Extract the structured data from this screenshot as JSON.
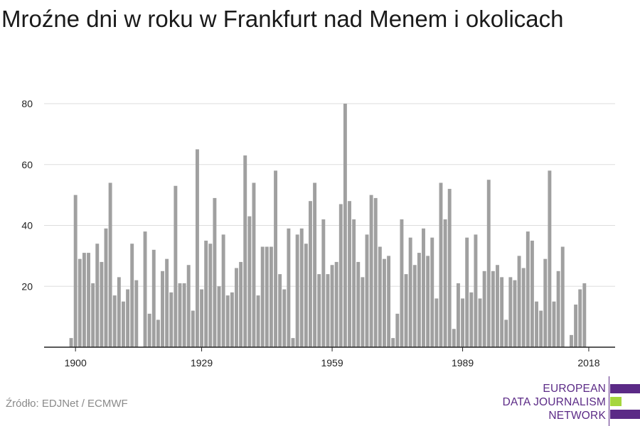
{
  "title": "Mroźne dni w roku w Frankfurt nad Menem i okolicach",
  "source": "Źródło: EDJNet / ECMWF",
  "logo": {
    "lines": [
      "EUROPEAN",
      "DATA JOURNALISM",
      "NETWORK"
    ],
    "colors": {
      "purple": "#5b2a86",
      "green": "#a5d63d"
    }
  },
  "colors": {
    "bar": "#a0a0a0",
    "grid": "#dddddd",
    "axis": "#222222"
  },
  "chart_data": {
    "type": "bar",
    "title": "Mroźne dni w roku w Frankfurt nad Menem i okolicach",
    "xlabel": "",
    "ylabel": "",
    "ylim": [
      0,
      80
    ],
    "yticks": [
      20,
      40,
      60,
      80
    ],
    "xticks": [
      1900,
      1929,
      1959,
      1989,
      2018
    ],
    "grid": true,
    "legend": "none",
    "categories": [
      1899,
      1900,
      1901,
      1902,
      1903,
      1904,
      1905,
      1906,
      1907,
      1908,
      1909,
      1910,
      1911,
      1912,
      1913,
      1914,
      1915,
      1916,
      1917,
      1918,
      1919,
      1920,
      1921,
      1922,
      1923,
      1924,
      1925,
      1926,
      1927,
      1928,
      1929,
      1930,
      1931,
      1932,
      1933,
      1934,
      1935,
      1936,
      1937,
      1938,
      1939,
      1940,
      1941,
      1942,
      1943,
      1944,
      1945,
      1946,
      1947,
      1948,
      1949,
      1950,
      1951,
      1952,
      1953,
      1954,
      1955,
      1956,
      1957,
      1958,
      1959,
      1960,
      1961,
      1962,
      1963,
      1964,
      1965,
      1966,
      1967,
      1968,
      1969,
      1970,
      1971,
      1972,
      1973,
      1974,
      1975,
      1976,
      1977,
      1978,
      1979,
      1980,
      1981,
      1982,
      1983,
      1984,
      1985,
      1986,
      1987,
      1988,
      1989,
      1990,
      1991,
      1992,
      1993,
      1994,
      1995,
      1996,
      1997,
      1998,
      1999,
      2000,
      2001,
      2002,
      2003,
      2004,
      2005,
      2006,
      2007,
      2008,
      2009,
      2010,
      2011,
      2012,
      2013,
      2014,
      2015,
      2016,
      2017,
      2018
    ],
    "values": [
      3,
      50,
      29,
      31,
      31,
      21,
      34,
      28,
      39,
      54,
      17,
      23,
      15,
      19,
      34,
      22,
      0,
      38,
      11,
      32,
      9,
      25,
      29,
      18,
      53,
      21,
      21,
      27,
      12,
      65,
      19,
      35,
      34,
      49,
      20,
      37,
      17,
      18,
      26,
      28,
      63,
      43,
      54,
      17,
      33,
      33,
      33,
      58,
      24,
      19,
      39,
      3,
      37,
      39,
      34,
      48,
      54,
      24,
      42,
      24,
      27,
      28,
      47,
      80,
      48,
      42,
      28,
      23,
      37,
      50,
      49,
      33,
      29,
      30,
      3,
      11,
      42,
      24,
      36,
      27,
      31,
      39,
      30,
      36,
      16,
      54,
      42,
      52,
      6,
      21,
      16,
      36,
      18,
      37,
      16,
      25,
      55,
      25,
      27,
      23,
      9,
      23,
      22,
      30,
      26,
      38,
      35,
      15,
      12,
      29,
      58,
      15,
      25,
      33,
      0,
      4,
      14,
      19,
      21,
      0
    ]
  }
}
